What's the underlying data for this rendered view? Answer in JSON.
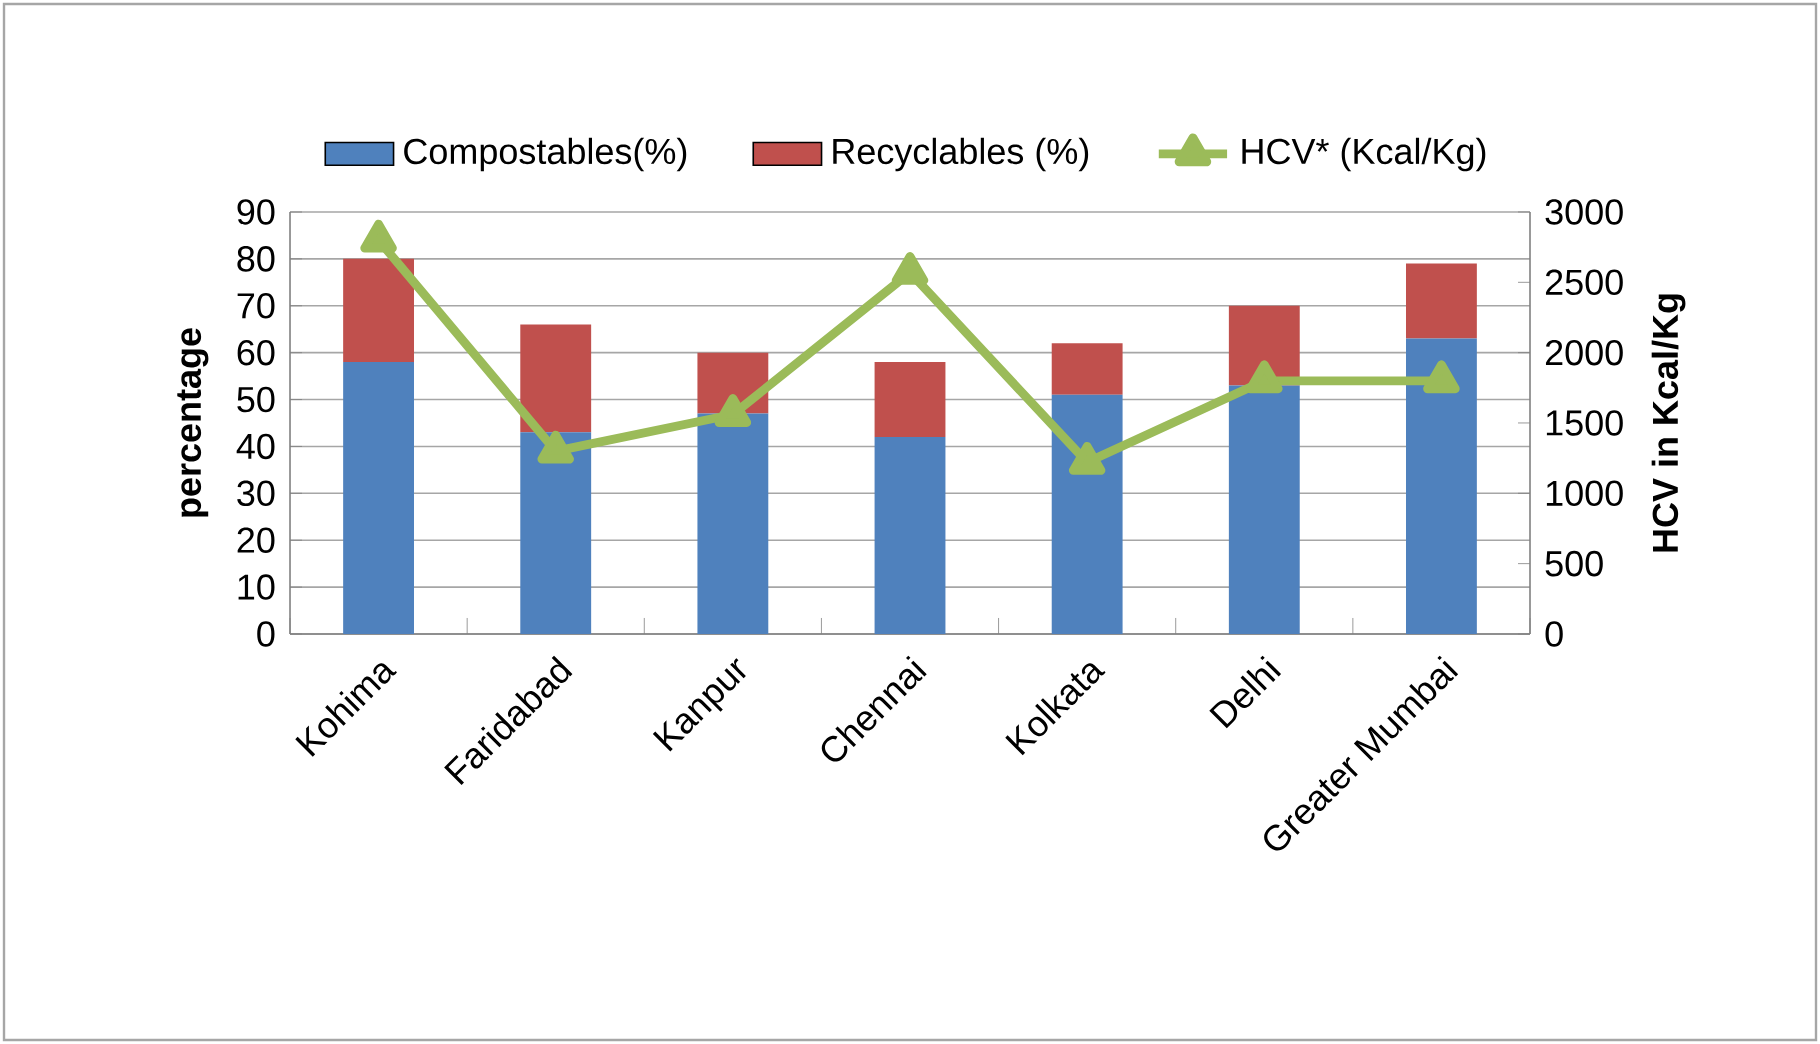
{
  "chart_data": {
    "type": "bar",
    "stacked": true,
    "xlabel": null,
    "ylabel": "percentage",
    "y2label": "HCV in Kcal/Kg",
    "categories": [
      "Kohima",
      "Faridabad",
      "Kanpur",
      "Chennai",
      "Kolkata",
      "Delhi",
      "Greater Mumbai"
    ],
    "series": [
      {
        "name": "Compostables(%)",
        "color": "#4f81bd",
        "values": [
          58,
          43,
          47,
          42,
          51,
          53,
          63
        ]
      },
      {
        "name": "Recyclables (%)",
        "color": "#c0504d",
        "values": [
          22,
          23,
          13,
          16,
          11,
          17,
          16
        ]
      },
      {
        "name": "HCV* (Kcal/Kg)",
        "type": "line",
        "axis": "y2",
        "marker": "triangle",
        "color": "#9bbb59",
        "values": [
          2800,
          1300,
          1560,
          2570,
          1220,
          1800,
          1800
        ]
      }
    ],
    "ylim": [
      0,
      90
    ],
    "yticks": [
      0,
      10,
      20,
      30,
      40,
      50,
      60,
      70,
      80,
      90
    ],
    "y2lim": [
      0,
      3000
    ],
    "y2ticks": [
      0,
      500,
      1000,
      1500,
      2000,
      2500,
      3000
    ],
    "grid": "y",
    "legend": "top"
  }
}
